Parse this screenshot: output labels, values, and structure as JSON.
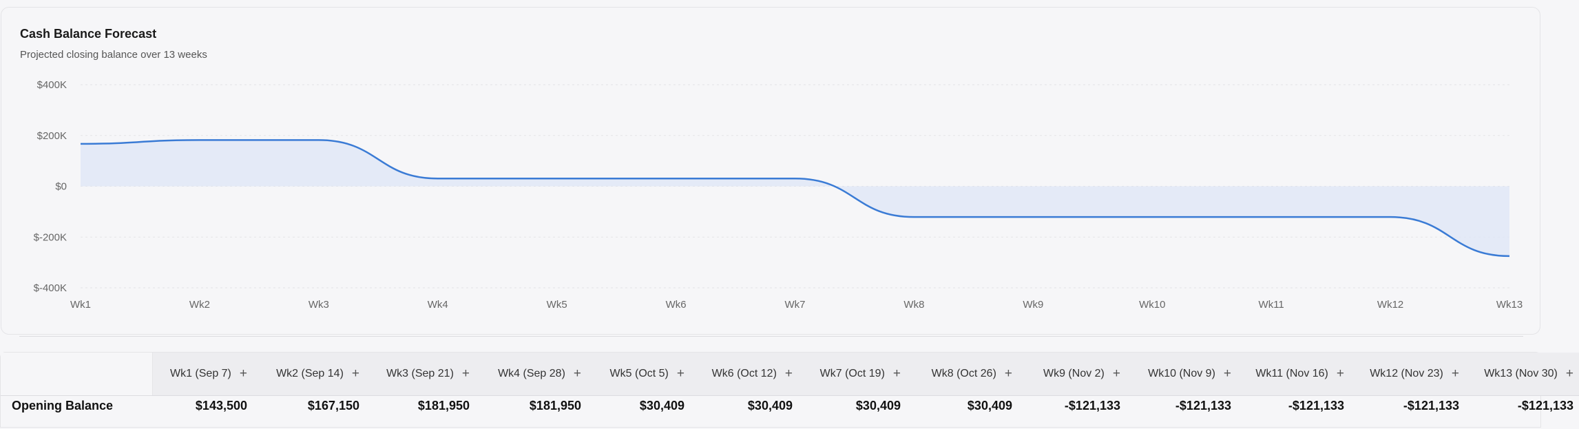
{
  "card": {
    "title": "Cash Balance Forecast",
    "subtitle": "Projected closing balance over 13 weeks"
  },
  "chart_data": {
    "type": "area",
    "title": "Cash Balance Forecast",
    "subtitle": "Projected closing balance over 13 weeks",
    "categories": [
      "Wk1",
      "Wk2",
      "Wk3",
      "Wk4",
      "Wk5",
      "Wk6",
      "Wk7",
      "Wk8",
      "Wk9",
      "Wk10",
      "Wk11",
      "Wk12",
      "Wk13"
    ],
    "series": [
      {
        "values": [
          167150,
          181950,
          181950,
          30409,
          30409,
          30409,
          30409,
          -121133,
          -121133,
          -121133,
          -121133,
          -121133,
          -275000
        ]
      }
    ],
    "y_ticks": [
      "$400K",
      "$200K",
      "$0",
      "$-200K",
      "$-400K"
    ],
    "ylim": [
      -400000,
      400000
    ],
    "grid": true,
    "line_color": "#3a7bd5",
    "fill_color": "#dde6f7"
  },
  "table": {
    "columns": [
      "Wk1 (Sep 7)",
      "Wk2 (Sep 14)",
      "Wk3 (Sep 21)",
      "Wk4 (Sep 28)",
      "Wk5 (Oct 5)",
      "Wk6 (Oct 12)",
      "Wk7 (Oct 19)",
      "Wk8 (Oct 26)",
      "Wk9 (Nov 2)",
      "Wk10 (Nov 9)",
      "Wk11 (Nov 16)",
      "Wk12 (Nov 23)",
      "Wk13 (Nov 30)"
    ],
    "add_glyph": "+",
    "rows": [
      {
        "label": "Opening Balance",
        "values": [
          "$143,500",
          "$167,150",
          "$181,950",
          "$181,950",
          "$30,409",
          "$30,409",
          "$30,409",
          "$30,409",
          "-$121,133",
          "-$121,133",
          "-$121,133",
          "-$121,133",
          "-$121,133"
        ]
      }
    ]
  }
}
